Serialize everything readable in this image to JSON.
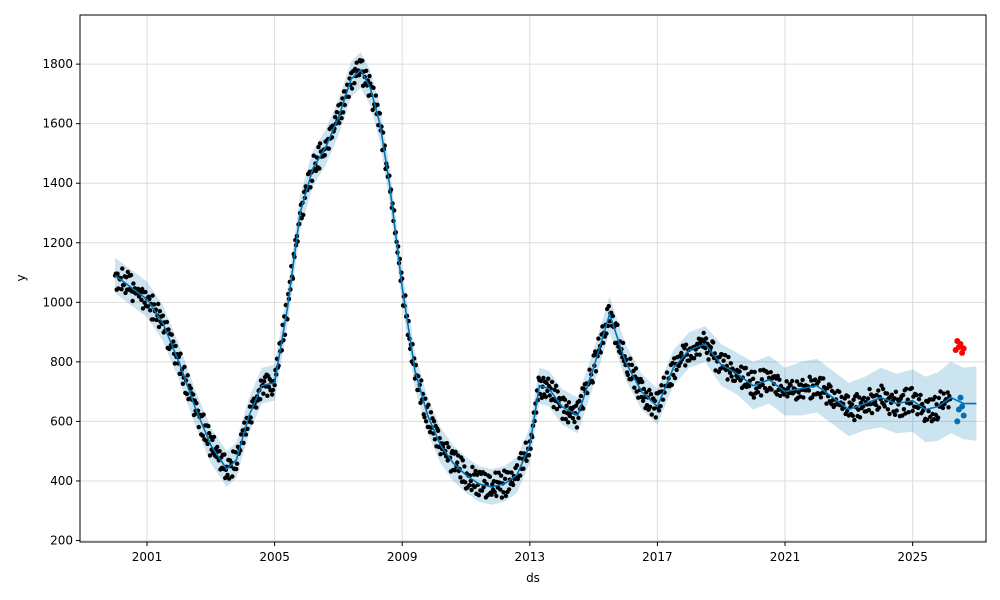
{
  "chart_data": {
    "type": "line",
    "title": "",
    "xlabel": "ds",
    "ylabel": "y",
    "xlim": [
      1998.9,
      2027.3
    ],
    "ylim": [
      195,
      1965
    ],
    "x_ticks": [
      {
        "value": 2001,
        "label": "2001"
      },
      {
        "value": 2005,
        "label": "2005"
      },
      {
        "value": 2009,
        "label": "2009"
      },
      {
        "value": 2013,
        "label": "2013"
      },
      {
        "value": 2017,
        "label": "2017"
      },
      {
        "value": 2021,
        "label": "2021"
      },
      {
        "value": 2025,
        "label": "2025"
      }
    ],
    "y_ticks": [
      {
        "value": 200,
        "label": "200"
      },
      {
        "value": 400,
        "label": "400"
      },
      {
        "value": 600,
        "label": "600"
      },
      {
        "value": 800,
        "label": "800"
      },
      {
        "value": 1000,
        "label": "1000"
      },
      {
        "value": 1200,
        "label": "1200"
      },
      {
        "value": 1400,
        "label": "1400"
      },
      {
        "value": 1600,
        "label": "1600"
      },
      {
        "value": 1800,
        "label": "1800"
      }
    ],
    "grid": true,
    "colors": {
      "forecast_line": "#0072B2",
      "uncertainty_band": "#0072B2",
      "observed_points": "#000000",
      "recent_points": "#ff0000",
      "forecast_points": "#0072B2"
    },
    "series": [
      {
        "role": "forecast",
        "x": [
          2000.0,
          2000.5,
          2001.0,
          2001.5,
          2002.0,
          2002.5,
          2003.0,
          2003.5,
          2003.8,
          2004.2,
          2004.6,
          2005.0,
          2005.4,
          2005.8,
          2006.2,
          2006.6,
          2007.0,
          2007.4,
          2007.7,
          2008.0,
          2008.3,
          2008.6,
          2009.0,
          2009.4,
          2009.8,
          2010.2,
          2010.6,
          2011.0,
          2011.4,
          2011.8,
          2012.2,
          2012.6,
          2013.0,
          2013.3,
          2013.6,
          2014.0,
          2014.5,
          2015.0,
          2015.5,
          2016.0,
          2016.5,
          2017.0,
          2017.5,
          2018.0,
          2018.5,
          2019.0,
          2019.5,
          2020.0,
          2020.5,
          2021.0,
          2021.5,
          2022.0,
          2022.5,
          2023.0,
          2023.5,
          2024.0,
          2024.5,
          2025.0,
          2025.4,
          2025.8,
          2026.2,
          2026.6,
          2027.0
        ],
        "y": [
          1090,
          1050,
          1010,
          930,
          800,
          650,
          520,
          440,
          470,
          620,
          720,
          730,
          980,
          1300,
          1450,
          1520,
          1620,
          1750,
          1780,
          1720,
          1600,
          1400,
          1050,
          770,
          620,
          520,
          460,
          420,
          390,
          380,
          390,
          420,
          520,
          720,
          710,
          650,
          620,
          780,
          960,
          800,
          700,
          650,
          780,
          840,
          860,
          790,
          760,
          720,
          740,
          700,
          710,
          720,
          680,
          640,
          660,
          680,
          660,
          670,
          640,
          650,
          680,
          660,
          660
        ],
        "lower": [
          1030,
          990,
          950,
          870,
          740,
          590,
          460,
          380,
          410,
          560,
          660,
          670,
          920,
          1240,
          1390,
          1460,
          1560,
          1690,
          1720,
          1660,
          1540,
          1340,
          990,
          710,
          560,
          460,
          400,
          360,
          330,
          320,
          330,
          360,
          460,
          660,
          650,
          590,
          560,
          720,
          900,
          740,
          640,
          590,
          720,
          780,
          800,
          720,
          690,
          640,
          660,
          620,
          620,
          630,
          590,
          550,
          570,
          580,
          560,
          565,
          530,
          535,
          560,
          540,
          535
        ],
        "upper": [
          1150,
          1110,
          1070,
          990,
          860,
          710,
          580,
          500,
          530,
          680,
          780,
          790,
          1040,
          1360,
          1510,
          1580,
          1680,
          1810,
          1840,
          1780,
          1660,
          1460,
          1110,
          830,
          680,
          580,
          520,
          480,
          450,
          440,
          450,
          480,
          580,
          780,
          770,
          710,
          680,
          840,
          1020,
          860,
          760,
          710,
          840,
          900,
          920,
          860,
          830,
          800,
          820,
          780,
          800,
          810,
          770,
          730,
          750,
          780,
          760,
          775,
          750,
          765,
          800,
          780,
          785
        ]
      },
      {
        "role": "recent_observations",
        "x": [
          2026.35,
          2026.4,
          2026.45,
          2026.5,
          2026.55,
          2026.6
        ],
        "y": [
          840,
          870,
          850,
          860,
          830,
          845
        ]
      },
      {
        "role": "forecast_points",
        "x": [
          2026.4,
          2026.45,
          2026.5,
          2026.55,
          2026.6
        ],
        "y": [
          600,
          640,
          680,
          650,
          620
        ]
      }
    ]
  }
}
